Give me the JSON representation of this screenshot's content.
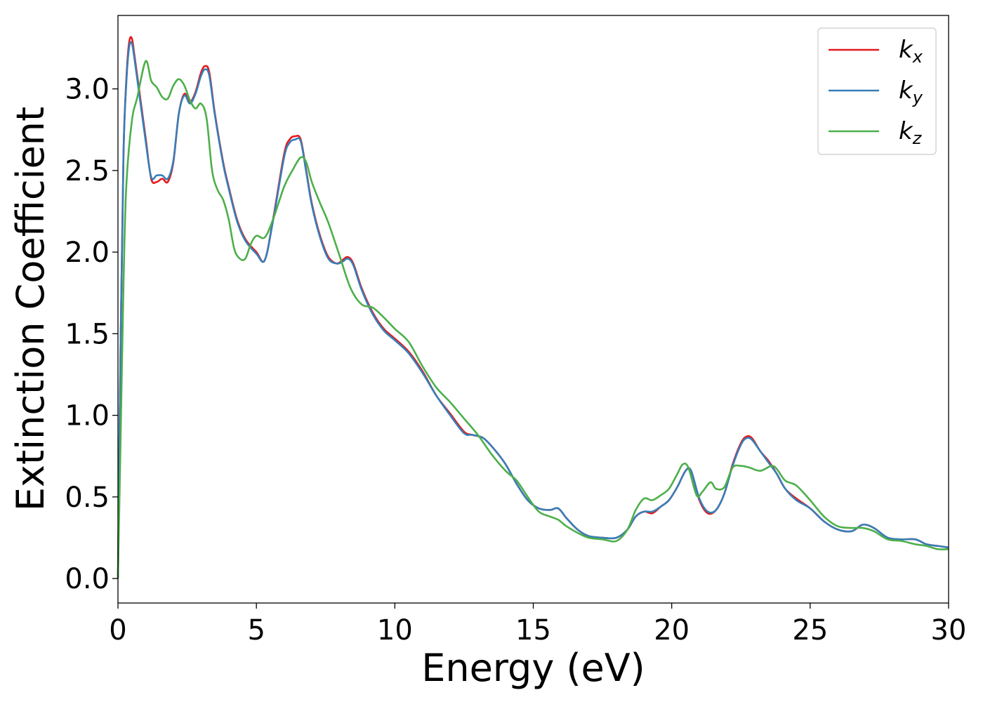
{
  "chart_data": {
    "type": "line",
    "xlabel": "Energy (eV)",
    "ylabel": "Extinction Coefficient",
    "xlim": [
      0,
      30
    ],
    "ylim": [
      -0.15,
      3.45
    ],
    "xticks": [
      0,
      5,
      10,
      15,
      20,
      25,
      30
    ],
    "xtick_labels": [
      "0",
      "5",
      "10",
      "15",
      "20",
      "25",
      "30"
    ],
    "yticks": [
      0.0,
      0.5,
      1.0,
      1.5,
      2.0,
      2.5,
      3.0
    ],
    "ytick_labels": [
      "0.0",
      "0.5",
      "1.0",
      "1.5",
      "2.0",
      "2.5",
      "3.0"
    ],
    "grid": false,
    "legend_position": "top-right",
    "series": [
      {
        "name": "k",
        "subscript": "x",
        "color": "#e41a1c",
        "x": [
          0,
          0.1,
          0.2,
          0.3,
          0.4,
          0.5,
          0.6,
          0.8,
          1.0,
          1.2,
          1.4,
          1.6,
          1.8,
          2.0,
          2.2,
          2.4,
          2.6,
          2.8,
          3.0,
          3.15,
          3.3,
          3.5,
          3.8,
          4.0,
          4.3,
          4.6,
          5.0,
          5.3,
          5.6,
          6.0,
          6.2,
          6.4,
          6.6,
          6.8,
          7.0,
          7.3,
          7.6,
          7.9,
          8.1,
          8.3,
          8.5,
          8.8,
          9.2,
          9.6,
          10.0,
          10.5,
          11.0,
          11.5,
          12.0,
          12.5,
          12.8,
          13.2,
          13.6,
          14.0,
          14.4,
          14.8,
          15.2,
          15.6,
          15.9,
          16.2,
          16.6,
          17.0,
          17.5,
          18.0,
          18.4,
          18.7,
          19.0,
          19.3,
          19.6,
          19.9,
          20.2,
          20.5,
          20.7,
          21.0,
          21.3,
          21.6,
          21.9,
          22.2,
          22.5,
          22.7,
          22.9,
          23.2,
          23.5,
          23.8,
          24.1,
          24.5,
          25.0,
          25.5,
          26.0,
          26.5,
          26.9,
          27.3,
          27.8,
          28.3,
          28.8,
          29.2,
          29.6,
          30.0
        ],
        "values": [
          0.0,
          1.5,
          2.6,
          3.05,
          3.28,
          3.31,
          3.2,
          2.95,
          2.7,
          2.45,
          2.43,
          2.45,
          2.43,
          2.55,
          2.85,
          2.97,
          2.92,
          2.98,
          3.1,
          3.14,
          3.1,
          2.85,
          2.55,
          2.4,
          2.2,
          2.08,
          2.0,
          1.95,
          2.2,
          2.6,
          2.69,
          2.71,
          2.69,
          2.5,
          2.3,
          2.1,
          1.97,
          1.93,
          1.95,
          1.97,
          1.93,
          1.78,
          1.63,
          1.53,
          1.47,
          1.39,
          1.27,
          1.12,
          1.01,
          0.9,
          0.88,
          0.86,
          0.79,
          0.7,
          0.58,
          0.48,
          0.43,
          0.42,
          0.43,
          0.37,
          0.3,
          0.26,
          0.25,
          0.25,
          0.3,
          0.38,
          0.41,
          0.4,
          0.44,
          0.48,
          0.56,
          0.66,
          0.66,
          0.48,
          0.4,
          0.42,
          0.52,
          0.7,
          0.83,
          0.87,
          0.86,
          0.78,
          0.72,
          0.64,
          0.55,
          0.49,
          0.43,
          0.35,
          0.3,
          0.29,
          0.33,
          0.31,
          0.25,
          0.24,
          0.24,
          0.21,
          0.2,
          0.19
        ]
      },
      {
        "name": "k",
        "subscript": "y",
        "color": "#377eb8",
        "x": [
          0,
          0.1,
          0.2,
          0.3,
          0.4,
          0.5,
          0.6,
          0.8,
          1.0,
          1.2,
          1.4,
          1.6,
          1.8,
          2.0,
          2.2,
          2.4,
          2.6,
          2.8,
          3.0,
          3.15,
          3.3,
          3.5,
          3.8,
          4.0,
          4.3,
          4.6,
          5.0,
          5.3,
          5.6,
          6.0,
          6.2,
          6.4,
          6.6,
          6.8,
          7.0,
          7.3,
          7.6,
          7.9,
          8.1,
          8.3,
          8.5,
          8.8,
          9.2,
          9.6,
          10.0,
          10.5,
          11.0,
          11.5,
          12.0,
          12.5,
          12.8,
          13.2,
          13.6,
          14.0,
          14.4,
          14.8,
          15.2,
          15.6,
          15.9,
          16.2,
          16.6,
          17.0,
          17.5,
          18.0,
          18.4,
          18.7,
          19.0,
          19.3,
          19.6,
          19.9,
          20.2,
          20.5,
          20.7,
          21.0,
          21.3,
          21.6,
          21.9,
          22.2,
          22.5,
          22.7,
          22.9,
          23.2,
          23.5,
          23.8,
          24.1,
          24.5,
          25.0,
          25.5,
          26.0,
          26.5,
          26.9,
          27.3,
          27.8,
          28.3,
          28.8,
          29.2,
          29.6,
          30.0
        ],
        "values": [
          0.0,
          1.5,
          2.6,
          3.03,
          3.25,
          3.28,
          3.18,
          2.93,
          2.68,
          2.46,
          2.47,
          2.47,
          2.45,
          2.56,
          2.85,
          2.96,
          2.91,
          2.97,
          3.08,
          3.12,
          3.08,
          2.84,
          2.54,
          2.39,
          2.19,
          2.07,
          1.99,
          1.95,
          2.19,
          2.58,
          2.67,
          2.69,
          2.68,
          2.49,
          2.29,
          2.09,
          1.96,
          1.93,
          1.94,
          1.96,
          1.92,
          1.77,
          1.62,
          1.52,
          1.46,
          1.38,
          1.26,
          1.12,
          1.0,
          0.89,
          0.88,
          0.86,
          0.79,
          0.7,
          0.58,
          0.48,
          0.43,
          0.42,
          0.43,
          0.37,
          0.3,
          0.26,
          0.25,
          0.25,
          0.3,
          0.38,
          0.41,
          0.41,
          0.44,
          0.48,
          0.56,
          0.66,
          0.66,
          0.49,
          0.41,
          0.42,
          0.52,
          0.69,
          0.82,
          0.86,
          0.85,
          0.78,
          0.71,
          0.64,
          0.55,
          0.48,
          0.43,
          0.35,
          0.3,
          0.29,
          0.33,
          0.31,
          0.25,
          0.24,
          0.24,
          0.21,
          0.2,
          0.19
        ]
      },
      {
        "name": "k",
        "subscript": "z",
        "color": "#4daf4a",
        "x": [
          0,
          0.1,
          0.2,
          0.3,
          0.5,
          0.7,
          1.0,
          1.2,
          1.4,
          1.6,
          1.8,
          2.0,
          2.2,
          2.4,
          2.6,
          2.8,
          3.0,
          3.2,
          3.4,
          3.6,
          3.8,
          4.0,
          4.2,
          4.4,
          4.6,
          4.8,
          5.0,
          5.3,
          5.6,
          6.0,
          6.3,
          6.6,
          6.8,
          7.0,
          7.3,
          7.6,
          8.0,
          8.4,
          8.8,
          9.2,
          9.6,
          10.0,
          10.5,
          11.0,
          11.5,
          12.0,
          12.5,
          13.0,
          13.5,
          14.0,
          14.4,
          14.8,
          15.2,
          15.6,
          15.9,
          16.2,
          16.6,
          17.0,
          17.5,
          18.0,
          18.4,
          18.7,
          19.0,
          19.3,
          19.6,
          19.9,
          20.2,
          20.4,
          20.6,
          20.9,
          21.1,
          21.4,
          21.6,
          21.9,
          22.2,
          22.5,
          22.8,
          23.2,
          23.6,
          23.8,
          24.1,
          24.5,
          25.0,
          25.5,
          26.0,
          26.5,
          26.9,
          27.3,
          27.8,
          28.3,
          28.8,
          29.2,
          29.6,
          30.0
        ],
        "values": [
          0.0,
          0.9,
          1.8,
          2.4,
          2.8,
          2.95,
          3.17,
          3.05,
          3.01,
          2.95,
          2.94,
          3.02,
          3.06,
          3.02,
          2.93,
          2.88,
          2.91,
          2.82,
          2.5,
          2.38,
          2.32,
          2.2,
          2.02,
          1.96,
          1.96,
          2.05,
          2.1,
          2.09,
          2.2,
          2.4,
          2.5,
          2.58,
          2.55,
          2.43,
          2.3,
          2.18,
          1.98,
          1.78,
          1.68,
          1.66,
          1.6,
          1.53,
          1.45,
          1.3,
          1.17,
          1.08,
          0.98,
          0.88,
          0.76,
          0.66,
          0.6,
          0.5,
          0.41,
          0.38,
          0.36,
          0.32,
          0.28,
          0.25,
          0.24,
          0.23,
          0.3,
          0.42,
          0.49,
          0.48,
          0.51,
          0.55,
          0.64,
          0.7,
          0.68,
          0.51,
          0.53,
          0.59,
          0.55,
          0.56,
          0.68,
          0.69,
          0.68,
          0.66,
          0.69,
          0.67,
          0.6,
          0.57,
          0.48,
          0.38,
          0.32,
          0.31,
          0.31,
          0.29,
          0.24,
          0.23,
          0.21,
          0.2,
          0.18,
          0.18
        ]
      }
    ]
  }
}
